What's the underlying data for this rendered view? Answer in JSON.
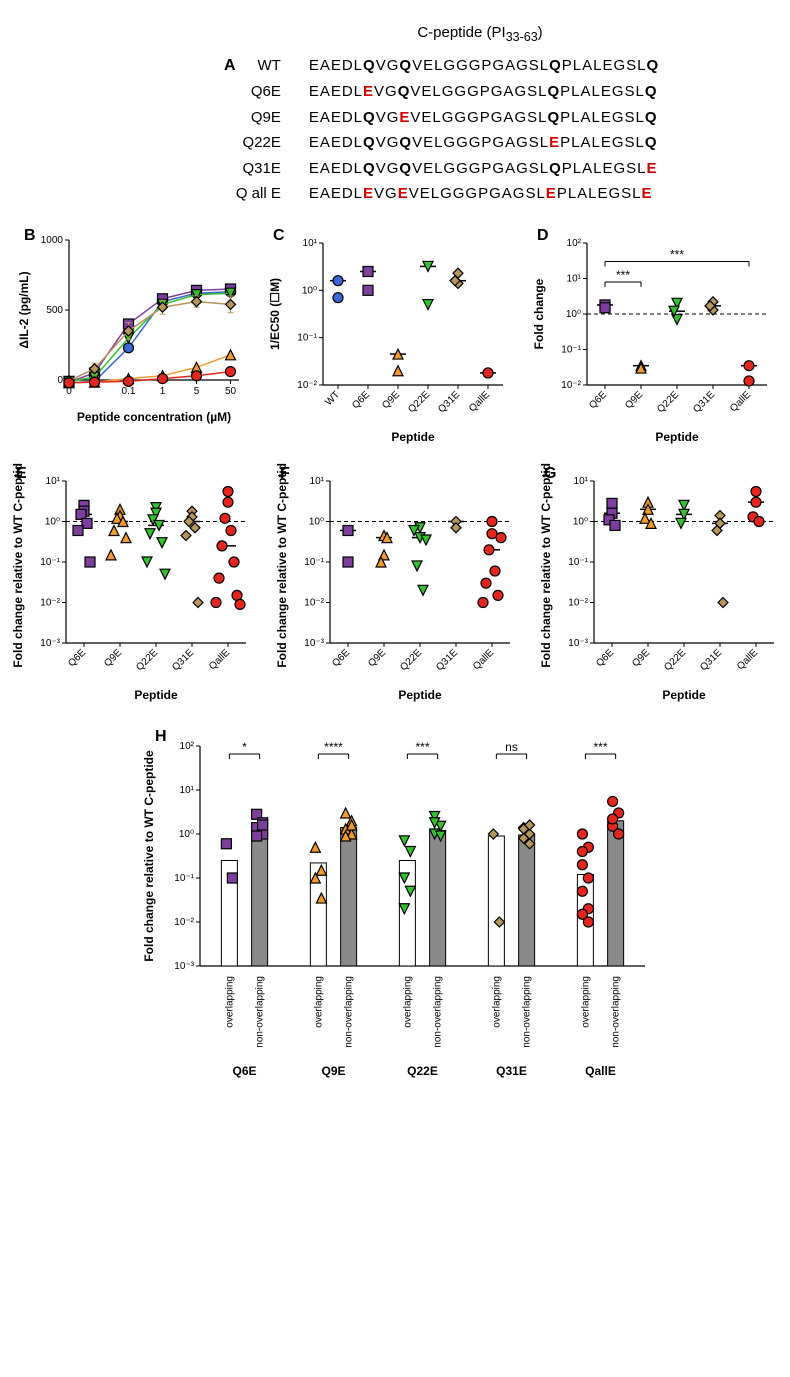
{
  "panelA": {
    "title_prefix": "C-peptide (PI",
    "title_sub": "33-63",
    "title_suffix": ")",
    "letter": "A",
    "rows": [
      {
        "label": "WT",
        "seq": "EAEDLQVGQVELGGGPGAGSLQPLALEGSLQ",
        "mut": []
      },
      {
        "label": "Q6E",
        "seq": "EAEDLEVGQVELGGGPGAGSLQPLALEGSLQ",
        "mut": [
          5
        ]
      },
      {
        "label": "Q9E",
        "seq": "EAEDLQVGEVELGGGPGAGSLQPLALEGSLQ",
        "mut": [
          8
        ]
      },
      {
        "label": "Q22E",
        "seq": "EAEDLQVGQVELGGGPGAGSLEPLALEGSLQ",
        "mut": [
          21
        ]
      },
      {
        "label": "Q31E",
        "seq": "EAEDLQVGQVELGGGPGAGSLQPLALEGSLE",
        "mut": [
          30
        ]
      },
      {
        "label": "Q all E",
        "seq": "EAEDLEVGEVELGGGPGAGSLEPLALEGSLE",
        "mut": [
          5,
          8,
          21,
          30
        ]
      }
    ],
    "bold_positions": [
      5,
      8,
      21,
      30
    ]
  },
  "colors": {
    "WT": "#3a66d6",
    "Q6E": "#7d3e9e",
    "Q9E": "#f29a2e",
    "Q22E": "#32c22b",
    "Q31E": "#b7955e",
    "QallE": "#e5261f",
    "axis": "#000000",
    "bg": "#ffffff",
    "barFill": "#8a8a8a"
  },
  "markers": {
    "WT": "circle",
    "Q6E": "square",
    "Q9E": "triangle-up",
    "Q22E": "triangle-down",
    "Q31E": "diamond",
    "QallE": "circle"
  },
  "panelB": {
    "letter": "B",
    "xlabel": "Peptide concentration (µM)",
    "ylabel": "ΔIL-2 (pg/mL)",
    "ylim": [
      0,
      1000
    ],
    "yticks": [
      0,
      500,
      1000
    ],
    "xticks": [
      "0",
      "0.1",
      "1",
      "5",
      "50"
    ],
    "series": {
      "WT": [
        -20,
        -10,
        230,
        560,
        620,
        630
      ],
      "Q6E": [
        -15,
        50,
        400,
        580,
        640,
        650
      ],
      "Q9E": [
        -20,
        -15,
        10,
        30,
        90,
        180
      ],
      "Q22E": [
        -10,
        20,
        300,
        540,
        610,
        620
      ],
      "Q31E": [
        -5,
        80,
        350,
        520,
        560,
        540
      ],
      "QallE": [
        -20,
        -15,
        -10,
        10,
        30,
        60
      ]
    },
    "err": {
      "Q31E": [
        0,
        40,
        60,
        50,
        40,
        60
      ]
    }
  },
  "panelC": {
    "letter": "C",
    "xlabel": "Peptide",
    "ylabel": "1/EC50 (☐M)",
    "ylim_log": [
      -2,
      1
    ],
    "yticks": [
      "10⁻²",
      "10⁻¹",
      "10⁰",
      "10¹"
    ],
    "cats": [
      "WT",
      "Q6E",
      "Q9E",
      "Q22E",
      "Q31E",
      "QallE"
    ],
    "points": {
      "WT": [
        1.6,
        0.7
      ],
      "Q6E": [
        2.5,
        1.0
      ],
      "Q9E": [
        0.045,
        0.02
      ],
      "Q22E": [
        3.2,
        0.5
      ],
      "Q31E": [
        2.3,
        1.4,
        1.6
      ],
      "QallE": [
        0.018,
        0.018
      ]
    }
  },
  "panelD": {
    "letter": "D",
    "xlabel": "Peptide",
    "ylabel": "Fold change",
    "ylim_log": [
      -2,
      2
    ],
    "yticks": [
      "10⁻²",
      "10⁻¹",
      "10⁰",
      "10¹",
      "10²"
    ],
    "cats": [
      "Q6E",
      "Q9E",
      "Q22E",
      "Q31E",
      "QallE"
    ],
    "points": {
      "Q6E": [
        1.8,
        1.5
      ],
      "Q9E": [
        0.035,
        0.03
      ],
      "Q22E": [
        2.0,
        0.7,
        1.2
      ],
      "Q31E": [
        2.2,
        1.3,
        1.7
      ],
      "QallE": [
        0.035,
        0.013
      ]
    },
    "sig": [
      {
        "from": "Q6E",
        "to": "Q9E",
        "label": "***",
        "y": 8
      },
      {
        "from": "Q6E",
        "to": "QallE",
        "label": "***",
        "y": 30
      }
    ]
  },
  "panelsEFG": {
    "xlabel": "Peptide",
    "ylabel": "Fold change relative to WT C-peptide",
    "ylim_log": [
      -3,
      1
    ],
    "yticks": [
      "10⁻³",
      "10⁻²",
      "10⁻¹",
      "10⁰",
      "10¹"
    ],
    "cats": [
      "Q6E",
      "Q9E",
      "Q22E",
      "Q31E",
      "QallE"
    ],
    "E": {
      "letter": "E",
      "points": {
        "Q6E": [
          2.5,
          1.8,
          1.5,
          0.9,
          0.6,
          0.1
        ],
        "Q9E": [
          2.0,
          1.4,
          1.2,
          1.0,
          0.6,
          0.4,
          0.15
        ],
        "Q22E": [
          2.2,
          1.6,
          1.1,
          0.8,
          0.5,
          0.3,
          0.1,
          0.05
        ],
        "Q31E": [
          1.8,
          1.3,
          1.0,
          0.7,
          0.45,
          0.01
        ],
        "QallE": [
          5.5,
          3.0,
          1.2,
          0.6,
          0.25,
          0.1,
          0.04,
          0.015,
          0.01,
          0.009
        ]
      }
    },
    "F": {
      "letter": "F",
      "points": {
        "Q6E": [
          0.6,
          0.1
        ],
        "Q9E": [
          0.45,
          0.15,
          0.1,
          0.4
        ],
        "Q22E": [
          0.7,
          0.4,
          0.08,
          0.02,
          0.6,
          0.35
        ],
        "Q31E": [
          1.0,
          0.7
        ],
        "QallE": [
          1.0,
          0.5,
          0.2,
          0.06,
          0.03,
          0.015,
          0.01,
          0.4
        ]
      }
    },
    "G": {
      "letter": "G",
      "points": {
        "Q6E": [
          2.8,
          1.6,
          1.1,
          0.8
        ],
        "Q9E": [
          3.0,
          2.0,
          1.2,
          0.9
        ],
        "Q22E": [
          2.5,
          1.5,
          0.9
        ],
        "Q31E": [
          1.4,
          0.9,
          0.6,
          0.01
        ],
        "QallE": [
          5.5,
          3.0,
          1.3,
          1.0
        ]
      }
    }
  },
  "panelH": {
    "letter": "H",
    "xlabel_groups": [
      "Q6E",
      "Q9E",
      "Q22E",
      "Q31E",
      "QallE"
    ],
    "sub_labels": [
      "overlapping",
      "non-overlapping"
    ],
    "ylabel": "Fold change relative to WT C-peptide",
    "ylim_log": [
      -3,
      2
    ],
    "yticks": [
      "10⁻³",
      "10⁻²",
      "10⁻¹",
      "10⁰",
      "10¹",
      "10²"
    ],
    "bars": {
      "Q6E": {
        "ov": 0.25,
        "nov": 1.3
      },
      "Q9E": {
        "ov": 0.22,
        "nov": 1.4
      },
      "Q22E": {
        "ov": 0.25,
        "nov": 1.2
      },
      "Q31E": {
        "ov": 0.9,
        "nov": 0.95
      },
      "QallE": {
        "ov": 0.12,
        "nov": 2.0
      }
    },
    "points": {
      "Q6E": {
        "ov": [
          0.6,
          0.1
        ],
        "nov": [
          2.8,
          1.8,
          1.4,
          1.0,
          0.9,
          1.6
        ]
      },
      "Q9E": {
        "ov": [
          0.5,
          0.15,
          0.1,
          0.035
        ],
        "nov": [
          3.0,
          2.0,
          1.3,
          1.0,
          0.9,
          1.6
        ]
      },
      "Q22E": {
        "ov": [
          0.7,
          0.4,
          0.1,
          0.05,
          0.02
        ],
        "nov": [
          2.5,
          1.5,
          1.0,
          0.9,
          1.8
        ]
      },
      "Q31E": {
        "ov": [
          1.0,
          0.01
        ],
        "nov": [
          1.4,
          1.0,
          0.8,
          0.6,
          1.3,
          1.6
        ]
      },
      "QallE": {
        "ov": [
          1.0,
          0.5,
          0.2,
          0.1,
          0.05,
          0.02,
          0.015,
          0.01,
          0.4
        ],
        "nov": [
          5.5,
          3.0,
          1.5,
          1.0,
          2.2
        ]
      }
    },
    "sig": [
      {
        "g": "Q6E",
        "label": "*"
      },
      {
        "g": "Q9E",
        "label": "****"
      },
      {
        "g": "Q22E",
        "label": "***"
      },
      {
        "g": "Q31E",
        "label": "ns"
      },
      {
        "g": "QallE",
        "label": "***"
      }
    ]
  }
}
